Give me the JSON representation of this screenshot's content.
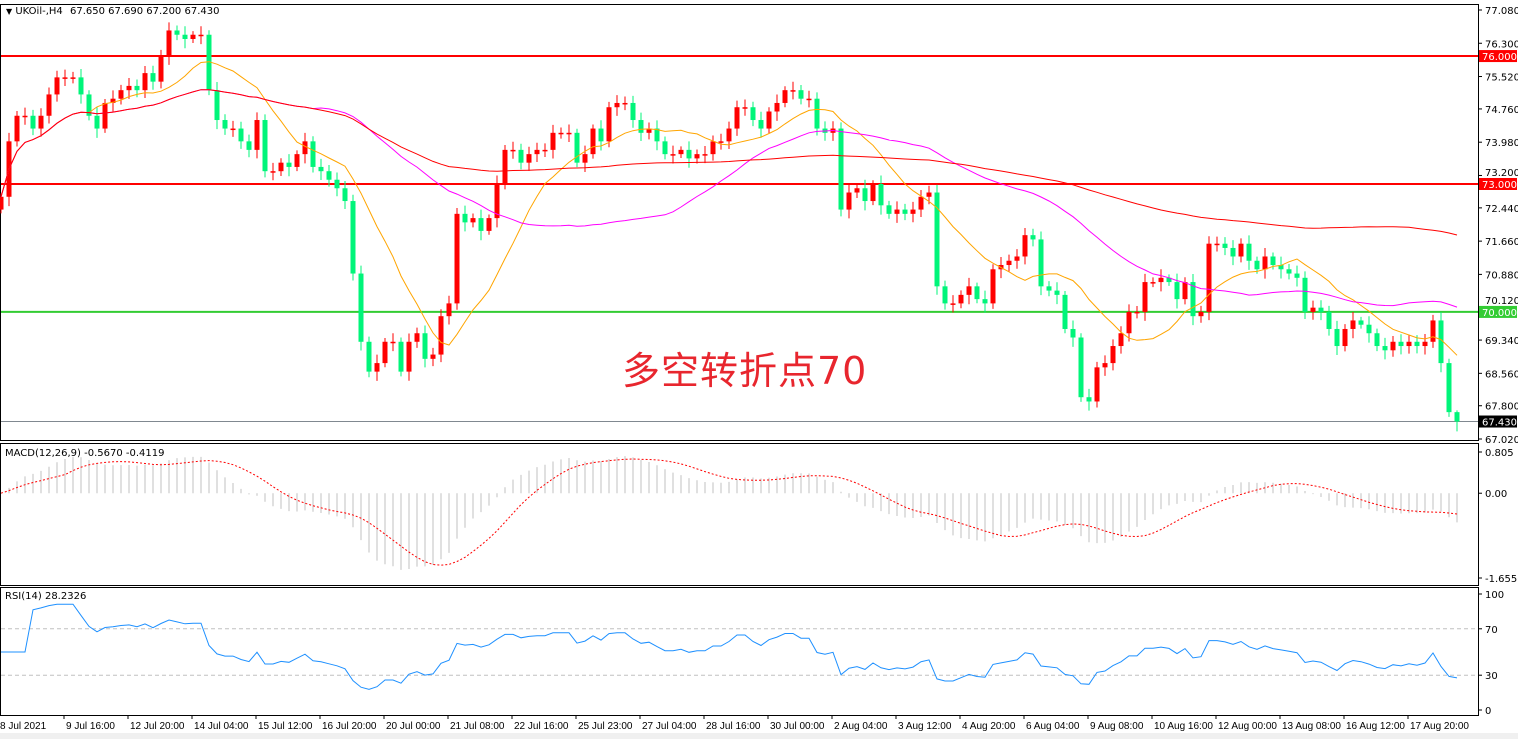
{
  "header": {
    "symbol": "UKOil-,H4",
    "ohlc": "67.650 67.690 67.200 67.430"
  },
  "annotation": "多空转折点70",
  "colors": {
    "bull_candle": "#ff0000",
    "bear_candle": "#00f57a",
    "ma_fast": "#ffa500",
    "ma_mid": "#ff00ff",
    "ma_slow": "#ff0000",
    "resistance_line": "#ff0000",
    "pivot_line": "#33cc33",
    "price_line": "#808890",
    "macd_hist": "#c0c0c0",
    "macd_signal": "#ff0000",
    "rsi_line": "#1e90ff",
    "rsi_levels": "#c0c0c0"
  },
  "chart_data": [
    {
      "type": "candlestick",
      "pane": "main",
      "title": "UKOil-,H4",
      "ylim": [
        67.02,
        77.08
      ],
      "y_ticks": [
        "77.080",
        "76.300",
        "75.520",
        "74.760",
        "73.980",
        "73.200",
        "72.440",
        "71.660",
        "70.880",
        "70.120",
        "69.340",
        "68.560",
        "67.800",
        "67.020"
      ],
      "x_ticks": [
        "8 Jul 2021",
        "9 Jul 16:00",
        "12 Jul 20:00",
        "14 Jul 04:00",
        "15 Jul 12:00",
        "16 Jul 20:00",
        "20 Jul 00:00",
        "21 Jul 08:00",
        "22 Jul 16:00",
        "25 Jul 23:00",
        "27 Jul 04:00",
        "28 Jul 16:00",
        "30 Jul 00:00",
        "2 Aug 04:00",
        "3 Aug 12:00",
        "4 Aug 20:00",
        "6 Aug 04:00",
        "9 Aug 08:00",
        "10 Aug 16:00",
        "12 Aug 00:00",
        "13 Aug 08:00",
        "16 Aug 12:00",
        "17 Aug 20:00"
      ],
      "bars_per_x_tick": 8,
      "last_bar": {
        "open": 67.65,
        "high": 67.69,
        "low": 67.2,
        "close": 67.43
      },
      "closes": [
        72.7,
        74.0,
        74.6,
        74.6,
        74.3,
        74.6,
        75.1,
        75.5,
        75.5,
        75.5,
        75.1,
        74.6,
        74.3,
        74.9,
        75.0,
        75.2,
        75.3,
        75.2,
        75.6,
        75.4,
        76.0,
        76.6,
        76.5,
        76.4,
        76.5,
        76.5,
        75.2,
        74.5,
        74.3,
        74.3,
        74.0,
        73.8,
        74.5,
        73.3,
        73.3,
        73.5,
        73.4,
        73.7,
        74.0,
        73.4,
        73.3,
        73.1,
        72.9,
        72.6,
        70.9,
        69.3,
        68.6,
        68.8,
        69.3,
        69.3,
        68.6,
        69.3,
        69.5,
        68.9,
        69.0,
        69.9,
        70.2,
        72.3,
        72.1,
        72.2,
        71.9,
        72.2,
        73.0,
        73.8,
        73.8,
        73.5,
        73.7,
        73.8,
        73.8,
        74.2,
        74.2,
        74.2,
        73.5,
        73.7,
        74.3,
        74.0,
        74.8,
        74.9,
        74.9,
        74.5,
        74.2,
        74.3,
        74.0,
        73.7,
        73.7,
        73.8,
        73.6,
        73.7,
        73.7,
        74.0,
        74.0,
        74.3,
        74.8,
        74.8,
        74.5,
        74.3,
        74.7,
        74.9,
        75.2,
        75.2,
        75.0,
        75.0,
        74.3,
        74.2,
        74.3,
        72.4,
        72.8,
        72.9,
        72.6,
        73.0,
        72.5,
        72.3,
        72.4,
        72.3,
        72.4,
        72.7,
        72.8,
        70.6,
        70.2,
        70.2,
        70.4,
        70.6,
        70.3,
        70.2,
        71.0,
        71.1,
        71.2,
        71.3,
        71.8,
        71.7,
        70.6,
        70.5,
        70.4,
        69.6,
        69.4,
        68.0,
        67.9,
        68.7,
        68.8,
        69.2,
        69.5,
        70.0,
        70.0,
        70.7,
        70.7,
        70.8,
        70.7,
        70.3,
        70.7,
        69.9,
        70.0,
        71.6,
        71.6,
        71.5,
        71.3,
        71.6,
        71.2,
        71.0,
        71.3,
        71.1,
        71.0,
        70.9,
        70.8,
        70.0,
        70.1,
        70.0,
        69.6,
        69.2,
        69.6,
        69.8,
        69.7,
        69.5,
        69.2,
        69.1,
        69.3,
        69.2,
        69.3,
        69.2,
        69.3,
        69.8,
        68.8,
        67.65,
        67.43
      ],
      "moving_averages": [
        {
          "color_key": "ma_fast",
          "period": 12
        },
        {
          "color_key": "ma_mid",
          "period": 40
        },
        {
          "color_key": "ma_slow",
          "period": 120
        }
      ],
      "horizontal_lines": [
        {
          "price": 76.0,
          "label": "76.000",
          "color_key": "resistance_line"
        },
        {
          "price": 73.0,
          "label": "73.000",
          "color_key": "resistance_line"
        },
        {
          "price": 70.0,
          "label": "70.000",
          "color_key": "pivot_line"
        },
        {
          "price": 67.43,
          "label": "67.430",
          "color_key": "price_line"
        }
      ]
    },
    {
      "type": "histogram+line",
      "pane": "macd",
      "title": "MACD(12,26,9) -0.5670 -0.4119",
      "params": [
        12,
        26,
        9
      ],
      "last_values": [
        -0.567,
        -0.4119
      ],
      "ylim": [
        -1.6556,
        0.805
      ],
      "y_ticks": [
        "0.805",
        "0.00",
        "-1.6556"
      ]
    },
    {
      "type": "line",
      "pane": "rsi",
      "title": "RSI(14) 28.2326",
      "period": 14,
      "last_value": 28.2326,
      "ylim": [
        0,
        100
      ],
      "levels": [
        70,
        30
      ],
      "y_ticks": [
        "100",
        "70",
        "30",
        "0"
      ]
    }
  ]
}
